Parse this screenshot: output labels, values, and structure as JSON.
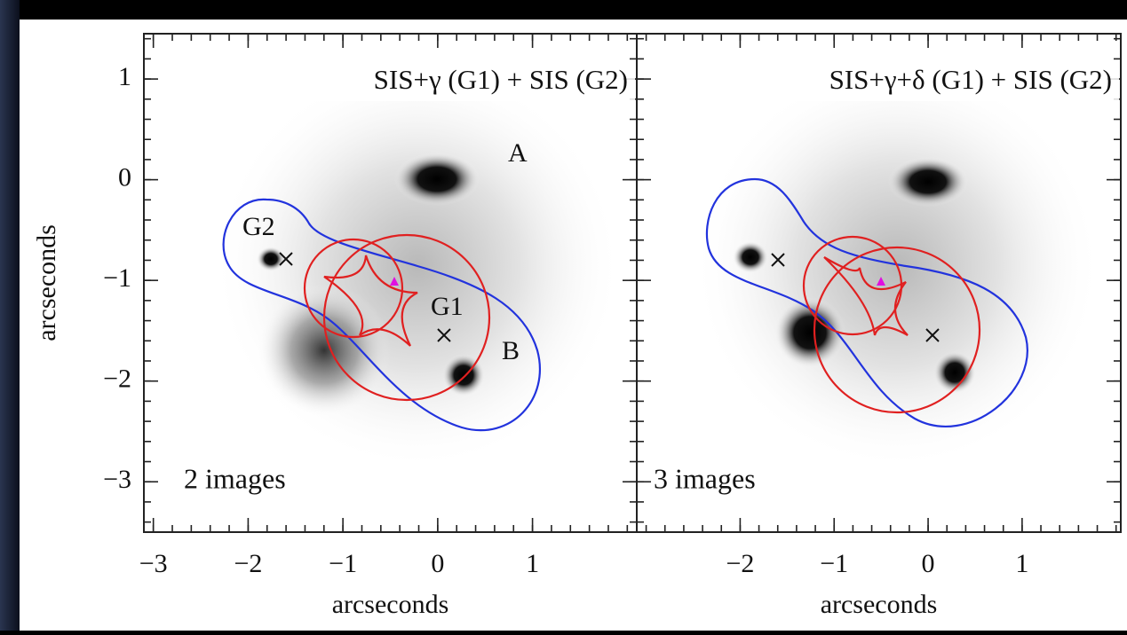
{
  "chart_data": [
    {
      "type": "lens-map",
      "title": "SIS+γ (G1) + SIS (G2)",
      "xlabel": "arcseconds",
      "ylabel": "arcseconds",
      "xlim": [
        -3.1,
        2.1
      ],
      "ylim": [
        -3.5,
        1.45
      ],
      "xticks": [
        {
          "value": -3,
          "label": "−3"
        },
        {
          "value": -2,
          "label": "−2"
        },
        {
          "value": -1,
          "label": "−1"
        },
        0,
        1
      ],
      "yticks": [
        1,
        0,
        {
          "value": -1,
          "label": "−1"
        },
        {
          "value": -2,
          "label": "−2"
        },
        {
          "value": -3,
          "label": "−3"
        }
      ],
      "ytick_labels": true,
      "annotations": [
        "A",
        "B",
        "G1",
        "G2",
        "2 images"
      ]
    },
    {
      "type": "lens-map",
      "title": "SIS+γ+δ (G1) + SIS (G2)",
      "xlabel": "arcseconds",
      "xlim": [
        -3.1,
        2.05
      ],
      "ylim": [
        -3.5,
        1.45
      ],
      "xticks": [
        {
          "value": -2,
          "label": "−2"
        },
        {
          "value": -1,
          "label": "−1"
        },
        0,
        1
      ],
      "yticks": [
        1,
        0,
        -1,
        -2,
        -3
      ],
      "ytick_labels": false,
      "annotations": [
        "3 images"
      ]
    }
  ]
}
